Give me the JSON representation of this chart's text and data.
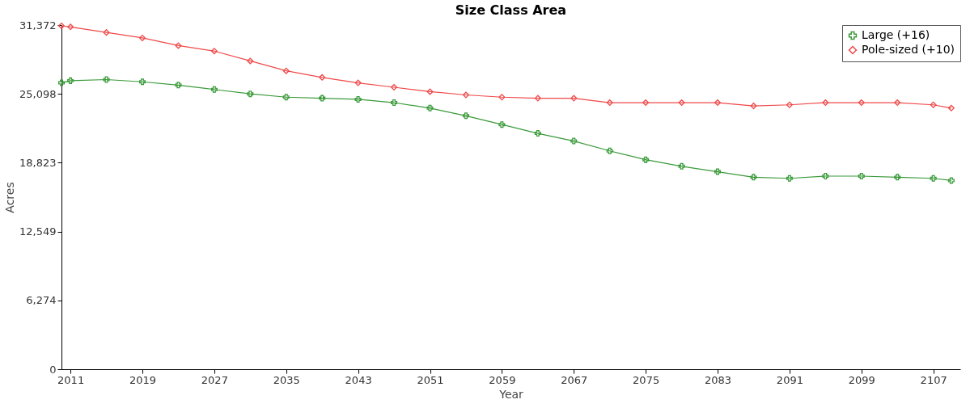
{
  "chart_data": {
    "type": "line",
    "title": "Size Class Area",
    "xlabel": "Year",
    "ylabel": "Acres",
    "x": [
      2010,
      2011,
      2015,
      2019,
      2023,
      2027,
      2031,
      2035,
      2039,
      2043,
      2047,
      2051,
      2055,
      2059,
      2063,
      2067,
      2071,
      2075,
      2079,
      2083,
      2087,
      2091,
      2095,
      2099,
      2103,
      2107,
      2109
    ],
    "series": [
      {
        "name": "Large (+16)",
        "color": "#3a9a3a",
        "marker": "cross",
        "values": [
          26100,
          26300,
          26400,
          26200,
          25900,
          25500,
          25100,
          24800,
          24700,
          24600,
          24300,
          23800,
          23100,
          22300,
          21500,
          20800,
          19900,
          19100,
          18500,
          18000,
          17500,
          17400,
          17600,
          17600,
          17500,
          17400,
          17200
        ]
      },
      {
        "name": "Pole-sized (+10)",
        "color": "#f04848",
        "marker": "diamond",
        "values": [
          31300,
          31200,
          30700,
          30200,
          29500,
          29000,
          28100,
          27200,
          26600,
          26100,
          25700,
          25300,
          25000,
          24800,
          24700,
          24700,
          24300,
          24300,
          24300,
          24300,
          24000,
          24100,
          24300,
          24300,
          24300,
          24100,
          23800
        ]
      }
    ],
    "xlim": [
      2010,
      2110
    ],
    "xticks": [
      2011,
      2019,
      2027,
      2035,
      2043,
      2051,
      2059,
      2067,
      2075,
      2083,
      2091,
      2099,
      2107
    ],
    "ylim": [
      0,
      31372
    ],
    "yticks": [
      0,
      {
        "value": 6274,
        "label": "6,274"
      },
      {
        "value": 12549,
        "label": "12,549"
      },
      {
        "value": 18823,
        "label": "18,823"
      },
      {
        "value": 25098,
        "label": "25,098"
      },
      {
        "value": 31372,
        "label": "31,372"
      }
    ],
    "grid": false,
    "legend": "top right",
    "line_style": "solid"
  }
}
